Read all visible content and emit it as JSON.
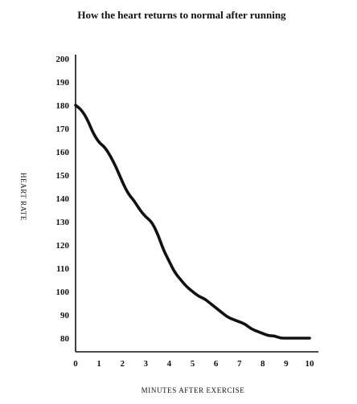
{
  "chart_data": {
    "type": "line",
    "title": "How the heart returns to normal after running",
    "xlabel": "MINUTES AFTER EXERCISE",
    "ylabel": "HEART RATE",
    "xlim": [
      0,
      10
    ],
    "ylim": [
      75,
      200
    ],
    "x_ticks": [
      0,
      1,
      2,
      3,
      4,
      5,
      6,
      7,
      8,
      9,
      10
    ],
    "y_ticks": [
      80,
      90,
      100,
      110,
      120,
      130,
      140,
      150,
      160,
      170,
      180,
      190,
      200
    ],
    "grid": false,
    "legend": "none",
    "series": [
      {
        "color": "#111111",
        "x": [
          0,
          0.25,
          0.5,
          0.75,
          1,
          1.25,
          1.5,
          1.75,
          2,
          2.25,
          2.5,
          2.75,
          3,
          3.25,
          3.5,
          3.75,
          4,
          4.25,
          4.5,
          4.75,
          5,
          5.25,
          5.5,
          5.75,
          6,
          6.25,
          6.5,
          6.75,
          7,
          7.25,
          7.5,
          7.75,
          8,
          8.25,
          8.5,
          8.75,
          9,
          9.25,
          9.5,
          9.75,
          10
        ],
        "y": [
          180,
          178,
          174,
          168,
          164,
          162,
          158,
          153,
          147,
          142,
          139,
          135,
          132,
          130,
          125,
          118,
          113,
          108,
          105,
          102,
          100,
          98,
          97,
          95,
          93,
          91,
          89,
          88,
          87,
          86,
          84,
          83,
          82,
          81,
          81,
          80,
          80,
          80,
          80,
          80,
          80
        ]
      }
    ]
  }
}
